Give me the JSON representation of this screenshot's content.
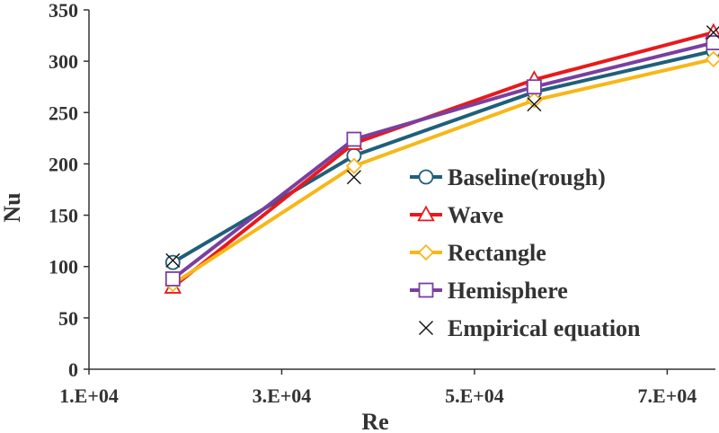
{
  "chart_data": {
    "type": "line",
    "title": "",
    "xlabel": "Re",
    "ylabel": "Nu",
    "xlim": [
      10000,
      75000
    ],
    "ylim": [
      0,
      350
    ],
    "x_ticks": [
      10000,
      30000,
      50000,
      70000
    ],
    "x_tick_labels": [
      "1.E+04",
      "3.E+04",
      "5.E+04",
      "7.E+04"
    ],
    "y_ticks": [
      0,
      50,
      100,
      150,
      200,
      250,
      300,
      350
    ],
    "y_tick_labels": [
      "0",
      "50",
      "100",
      "150",
      "200",
      "250",
      "300",
      "350"
    ],
    "grid": false,
    "legend_position": "right",
    "x": [
      18700,
      37500,
      56200,
      74800
    ],
    "series": [
      {
        "name": "Baseline(rough)",
        "values": [
          104,
          208,
          270,
          310
        ],
        "color": "#1f5f7a",
        "marker": "circle",
        "line": true
      },
      {
        "name": "Wave",
        "values": [
          80,
          220,
          282,
          328
        ],
        "color": "#e8191c",
        "marker": "triangle",
        "line": true
      },
      {
        "name": "Rectangle",
        "values": [
          83,
          198,
          262,
          302
        ],
        "color": "#f7b718",
        "marker": "diamond",
        "line": true
      },
      {
        "name": "Hemisphere",
        "values": [
          88,
          224,
          275,
          318
        ],
        "color": "#7a3fa0",
        "marker": "square",
        "line": true
      },
      {
        "name": "Empirical equation",
        "values": [
          106,
          187,
          258,
          328
        ],
        "color": "#111111",
        "marker": "x",
        "line": false
      }
    ]
  }
}
